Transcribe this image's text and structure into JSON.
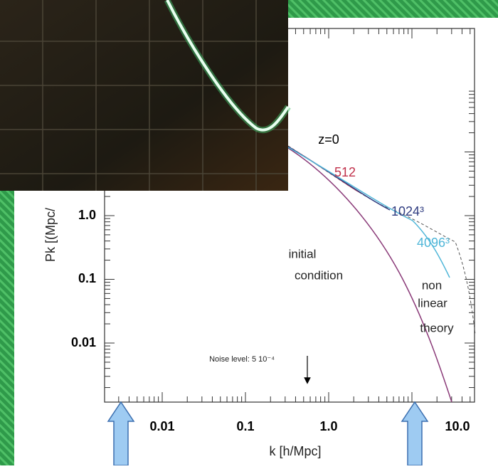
{
  "y_axis": {
    "label": "Pk [(Mpc/",
    "ticks": [
      "1.0",
      "0.1",
      "0.01"
    ]
  },
  "x_axis": {
    "label": "k [h/Mpc]",
    "ticks": [
      "0.01",
      "0.1",
      "1.0",
      "10.0"
    ]
  },
  "annotations": {
    "redshift": "z=0",
    "res_512": "512",
    "res_1024": "1024³",
    "res_4096": "4096³",
    "initial": [
      "initial",
      "condition"
    ],
    "nonlinear": [
      "non",
      "linear",
      "theory"
    ],
    "noise": "Noise level: 5 10⁻⁴"
  }
}
